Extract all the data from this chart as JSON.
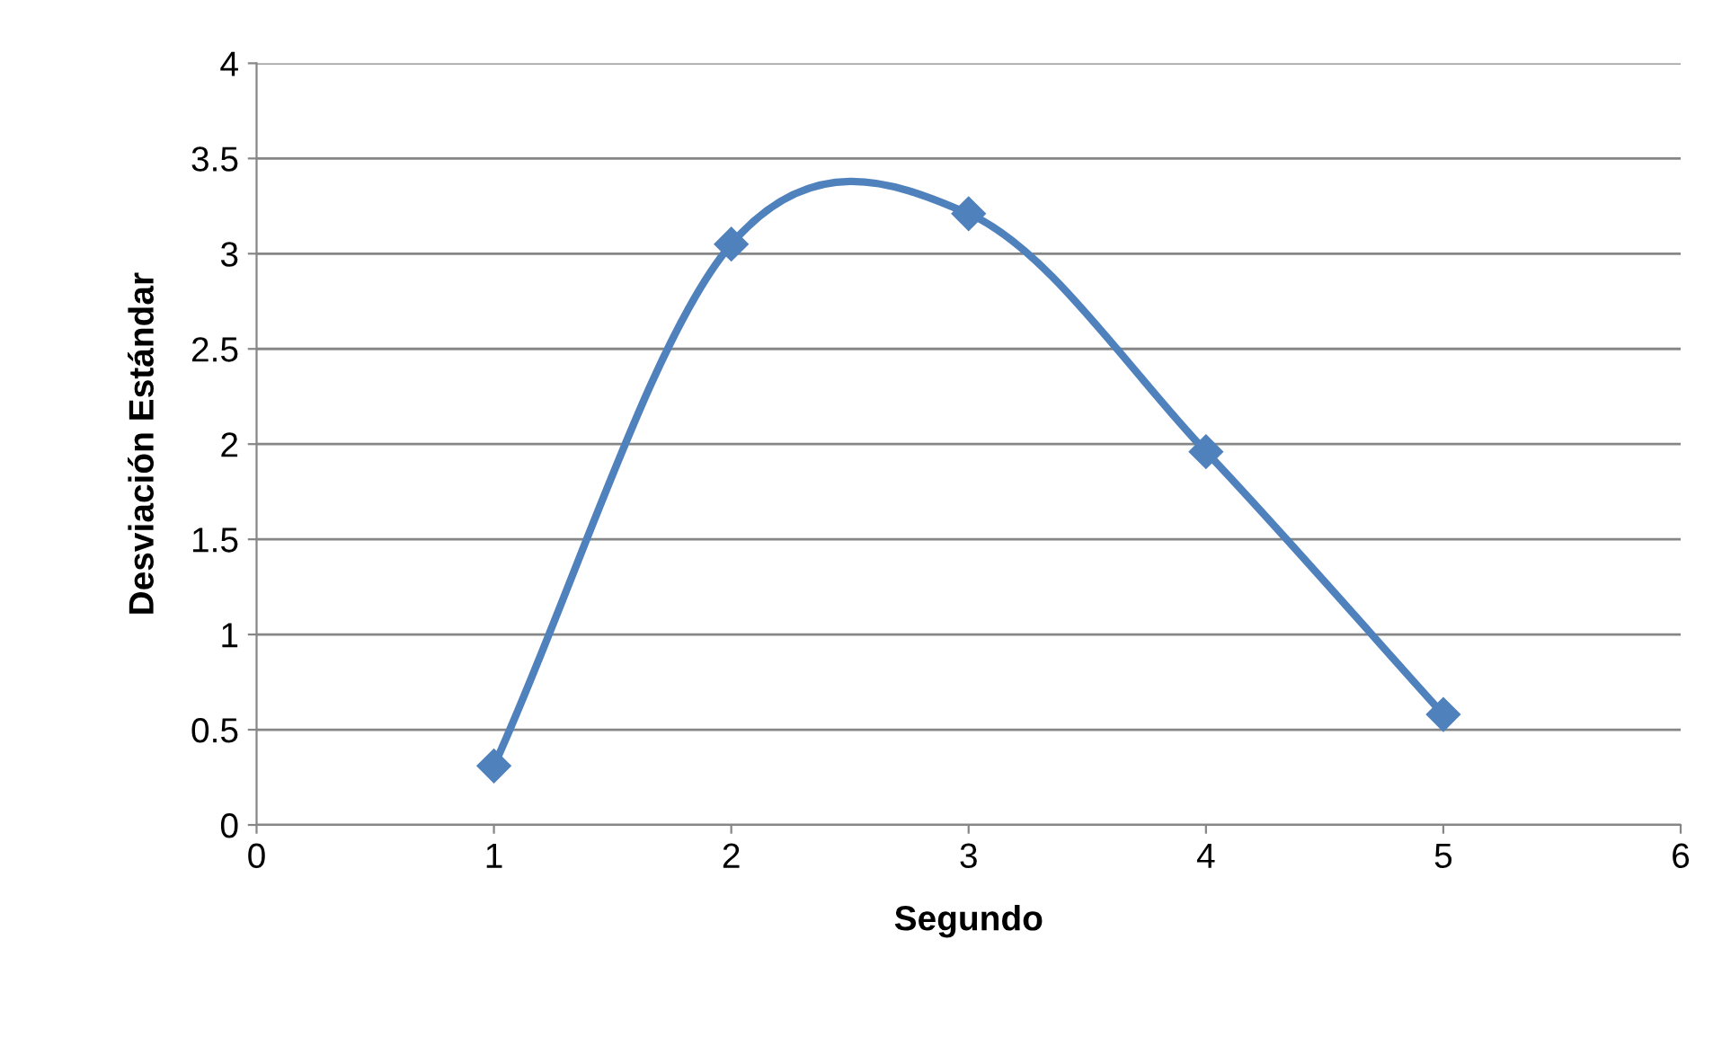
{
  "chart_data": {
    "type": "line",
    "xlabel": "Segundo",
    "ylabel": "Desviación Estándar",
    "x": [
      1,
      2,
      3,
      4,
      5
    ],
    "series": [
      {
        "color": "#4f81bd",
        "values": [
          0.31,
          3.05,
          3.21,
          1.96,
          0.58
        ]
      }
    ],
    "xlim": [
      0,
      6
    ],
    "xticks": [
      0,
      1,
      2,
      3,
      4,
      5,
      6
    ],
    "ylim": [
      0,
      4
    ],
    "yticks": [
      0,
      0.5,
      1,
      1.5,
      2,
      2.5,
      3,
      3.5,
      4
    ],
    "grid": "y",
    "marker": "diamond",
    "line_style": "solid",
    "legend": false
  }
}
